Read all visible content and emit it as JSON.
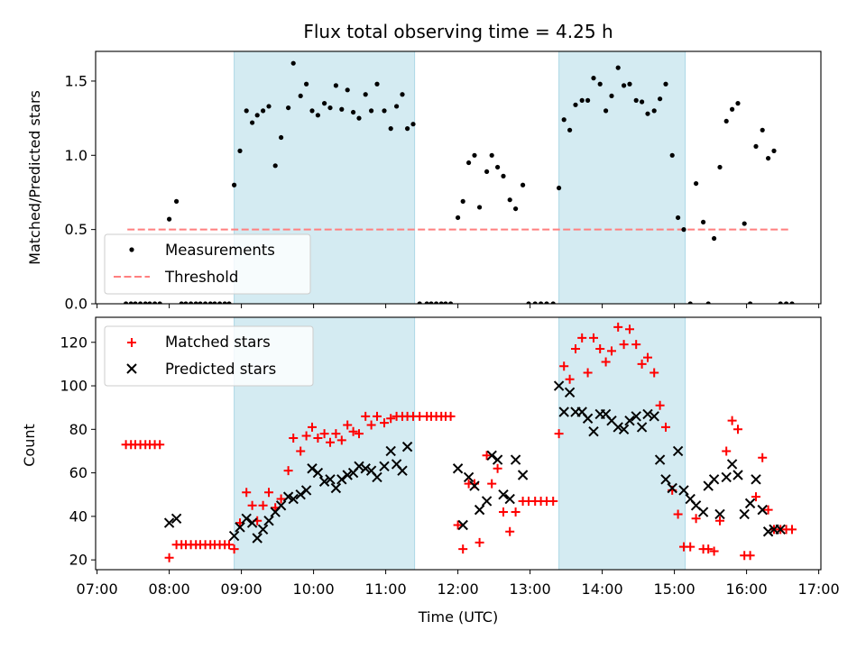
{
  "chart_data": [
    {
      "type": "scatter",
      "panel": "top",
      "title": "Flux total observing time = 4.25 h",
      "xlabel": "",
      "ylabel": "Matched/Predicted stars",
      "xlim": [
        6.98,
        17.03
      ],
      "ylim": [
        0,
        1.7
      ],
      "yticks": [
        0.0,
        0.5,
        1.0,
        1.5
      ],
      "ytick_labels": [
        "0.0",
        "0.5",
        "1.0",
        "1.5"
      ],
      "legend": [
        "Measurements",
        "Threshold"
      ],
      "legend_position": "lower-left",
      "shaded_intervals": [
        [
          8.9,
          11.4
        ],
        [
          13.4,
          15.15
        ]
      ],
      "threshold": {
        "name": "Threshold",
        "value": 0.5,
        "x_range": [
          7.42,
          16.6
        ],
        "color": "#ff7f7f"
      },
      "series": [
        {
          "name": "Measurements",
          "color": "#000000",
          "x": [
            7.4,
            7.47,
            7.53,
            7.6,
            7.67,
            7.73,
            7.8,
            7.87,
            8.0,
            8.1,
            8.17,
            8.23,
            8.3,
            8.37,
            8.43,
            8.5,
            8.57,
            8.63,
            8.7,
            8.77,
            8.83,
            8.9,
            8.98,
            9.07,
            9.15,
            9.22,
            9.3,
            9.38,
            9.47,
            9.55,
            9.65,
            9.72,
            9.82,
            9.9,
            9.98,
            10.06,
            10.15,
            10.23,
            10.31,
            10.39,
            10.47,
            10.55,
            10.63,
            10.72,
            10.8,
            10.88,
            10.98,
            11.07,
            11.15,
            11.23,
            11.3,
            11.38,
            11.47,
            11.57,
            11.63,
            11.7,
            11.77,
            11.83,
            11.9,
            12.0,
            12.07,
            12.15,
            12.23,
            12.3,
            12.4,
            12.47,
            12.55,
            12.63,
            12.72,
            12.8,
            12.9,
            12.98,
            13.07,
            13.15,
            13.23,
            13.32,
            13.4,
            13.47,
            13.55,
            13.63,
            13.72,
            13.8,
            13.88,
            13.97,
            14.05,
            14.13,
            14.22,
            14.3,
            14.38,
            14.47,
            14.55,
            14.63,
            14.72,
            14.8,
            14.88,
            14.97,
            15.05,
            15.13,
            15.22,
            15.3,
            15.4,
            15.47,
            15.55,
            15.63,
            15.72,
            15.8,
            15.88,
            15.97,
            16.05,
            16.13,
            16.22,
            16.3,
            16.38,
            16.47,
            16.55,
            16.63
          ],
          "y": [
            0,
            0,
            0,
            0,
            0,
            0,
            0,
            0,
            0.57,
            0.69,
            0,
            0,
            0,
            0,
            0,
            0,
            0,
            0,
            0,
            0,
            0,
            0.8,
            1.03,
            1.3,
            1.22,
            1.27,
            1.3,
            1.33,
            0.93,
            1.12,
            1.32,
            1.62,
            1.4,
            1.48,
            1.3,
            1.27,
            1.35,
            1.32,
            1.47,
            1.31,
            1.44,
            1.29,
            1.25,
            1.41,
            1.3,
            1.48,
            1.3,
            1.18,
            1.33,
            1.41,
            1.18,
            1.21,
            0,
            0,
            0,
            0,
            0,
            0,
            0,
            0.58,
            0.69,
            0.95,
            1.0,
            0.65,
            0.89,
            1.0,
            0.92,
            0.86,
            0.7,
            0.64,
            0.8,
            0,
            0,
            0,
            0,
            0,
            0.78,
            1.24,
            1.17,
            1.34,
            1.37,
            1.37,
            1.52,
            1.48,
            1.3,
            1.4,
            1.59,
            1.47,
            1.48,
            1.37,
            1.36,
            1.28,
            1.3,
            1.38,
            1.48,
            1.0,
            0.58,
            0.5,
            0,
            0.81,
            0.55,
            0,
            0.44,
            0.92,
            1.23,
            1.31,
            1.35,
            0.54,
            0,
            1.06,
            1.17,
            0.98,
            1.03,
            0,
            0,
            0
          ]
        }
      ]
    },
    {
      "type": "scatter",
      "panel": "bottom",
      "title": "",
      "xlabel": "Time (UTC)",
      "ylabel": "Count",
      "xlim": [
        6.98,
        17.03
      ],
      "ylim": [
        15.5,
        131.5
      ],
      "xticks": [
        7,
        8,
        9,
        10,
        11,
        12,
        13,
        14,
        15,
        16,
        17
      ],
      "xtick_labels": [
        "07:00",
        "08:00",
        "09:00",
        "10:00",
        "11:00",
        "12:00",
        "13:00",
        "14:00",
        "15:00",
        "16:00",
        "17:00"
      ],
      "yticks": [
        20,
        40,
        60,
        80,
        100,
        120
      ],
      "ytick_labels": [
        "20",
        "40",
        "60",
        "80",
        "100",
        "120"
      ],
      "legend": [
        "Matched stars",
        "Predicted stars"
      ],
      "legend_position": "upper-left",
      "shaded_intervals": [
        [
          8.9,
          11.4
        ],
        [
          13.4,
          15.15
        ]
      ],
      "series": [
        {
          "name": "Matched stars",
          "marker": "plus",
          "color": "#ff0000",
          "x": [
            7.4,
            7.47,
            7.53,
            7.6,
            7.67,
            7.73,
            7.8,
            7.87,
            8.0,
            8.1,
            8.17,
            8.23,
            8.3,
            8.37,
            8.43,
            8.5,
            8.57,
            8.63,
            8.7,
            8.77,
            8.83,
            8.9,
            8.98,
            9.07,
            9.15,
            9.22,
            9.3,
            9.38,
            9.47,
            9.55,
            9.65,
            9.72,
            9.82,
            9.9,
            9.98,
            10.06,
            10.15,
            10.23,
            10.31,
            10.39,
            10.47,
            10.55,
            10.63,
            10.72,
            10.8,
            10.88,
            10.98,
            11.07,
            11.15,
            11.23,
            11.3,
            11.38,
            11.47,
            11.57,
            11.63,
            11.7,
            11.77,
            11.83,
            11.9,
            12.0,
            12.07,
            12.15,
            12.23,
            12.3,
            12.4,
            12.47,
            12.55,
            12.63,
            12.72,
            12.8,
            12.9,
            12.98,
            13.07,
            13.15,
            13.23,
            13.32,
            13.4,
            13.47,
            13.55,
            13.63,
            13.72,
            13.8,
            13.88,
            13.97,
            14.05,
            14.13,
            14.22,
            14.3,
            14.38,
            14.47,
            14.55,
            14.63,
            14.72,
            14.8,
            14.88,
            14.97,
            15.05,
            15.13,
            15.22,
            15.3,
            15.4,
            15.47,
            15.55,
            15.63,
            15.72,
            15.8,
            15.88,
            15.97,
            16.05,
            16.13,
            16.22,
            16.3,
            16.38,
            16.47,
            16.55,
            16.63
          ],
          "y": [
            73,
            73,
            73,
            73,
            73,
            73,
            73,
            73,
            21,
            27,
            27,
            27,
            27,
            27,
            27,
            27,
            27,
            27,
            27,
            27,
            27,
            25,
            37,
            51,
            45,
            38,
            45,
            51,
            44,
            48,
            61,
            76,
            70,
            77,
            81,
            76,
            78,
            74,
            78,
            75,
            82,
            79,
            78,
            86,
            82,
            86,
            83,
            85,
            86,
            86,
            86,
            86,
            86,
            86,
            86,
            86,
            86,
            86,
            86,
            36,
            25,
            55,
            55,
            28,
            68,
            55,
            62,
            42,
            33,
            42,
            47,
            47,
            47,
            47,
            47,
            47,
            78,
            109,
            103,
            117,
            122,
            106,
            122,
            117,
            111,
            116,
            127,
            119,
            126,
            119,
            110,
            113,
            106,
            91,
            81,
            52,
            41,
            26,
            26,
            39,
            25,
            25,
            24,
            38,
            70,
            84,
            80,
            22,
            22,
            49,
            67,
            43,
            34,
            34,
            34,
            34
          ]
        },
        {
          "name": "Predicted stars",
          "marker": "x",
          "color": "#000000",
          "x": [
            8.0,
            8.1,
            8.9,
            8.98,
            9.07,
            9.15,
            9.22,
            9.3,
            9.38,
            9.47,
            9.55,
            9.65,
            9.72,
            9.82,
            9.9,
            9.98,
            10.06,
            10.15,
            10.23,
            10.31,
            10.39,
            10.47,
            10.55,
            10.63,
            10.72,
            10.8,
            10.88,
            10.98,
            11.07,
            11.15,
            11.23,
            11.3,
            12.0,
            12.07,
            12.15,
            12.23,
            12.3,
            12.4,
            12.47,
            12.55,
            12.63,
            12.72,
            12.8,
            12.9,
            13.4,
            13.47,
            13.55,
            13.63,
            13.72,
            13.8,
            13.88,
            13.97,
            14.05,
            14.13,
            14.22,
            14.3,
            14.38,
            14.47,
            14.55,
            14.63,
            14.72,
            14.8,
            14.88,
            14.97,
            15.05,
            15.13,
            15.22,
            15.3,
            15.4,
            15.47,
            15.55,
            15.63,
            15.72,
            15.8,
            15.88,
            15.97,
            16.05,
            16.13,
            16.22,
            16.3,
            16.38,
            16.47
          ],
          "y": [
            37,
            39,
            31,
            35,
            39,
            37,
            30,
            34,
            38,
            42,
            45,
            49,
            48,
            50,
            52,
            62,
            60,
            56,
            57,
            53,
            57,
            59,
            60,
            63,
            62,
            61,
            58,
            63,
            70,
            64,
            61,
            72,
            62,
            36,
            58,
            54,
            43,
            47,
            68,
            66,
            50,
            48,
            66,
            59,
            100,
            88,
            97,
            88,
            88,
            85,
            79,
            87,
            87,
            84,
            81,
            80,
            84,
            86,
            81,
            87,
            86,
            66,
            57,
            53,
            70,
            52,
            48,
            45,
            42,
            54,
            57,
            41,
            58,
            64,
            59,
            41,
            46,
            57,
            43,
            33,
            34,
            34
          ]
        }
      ]
    }
  ]
}
